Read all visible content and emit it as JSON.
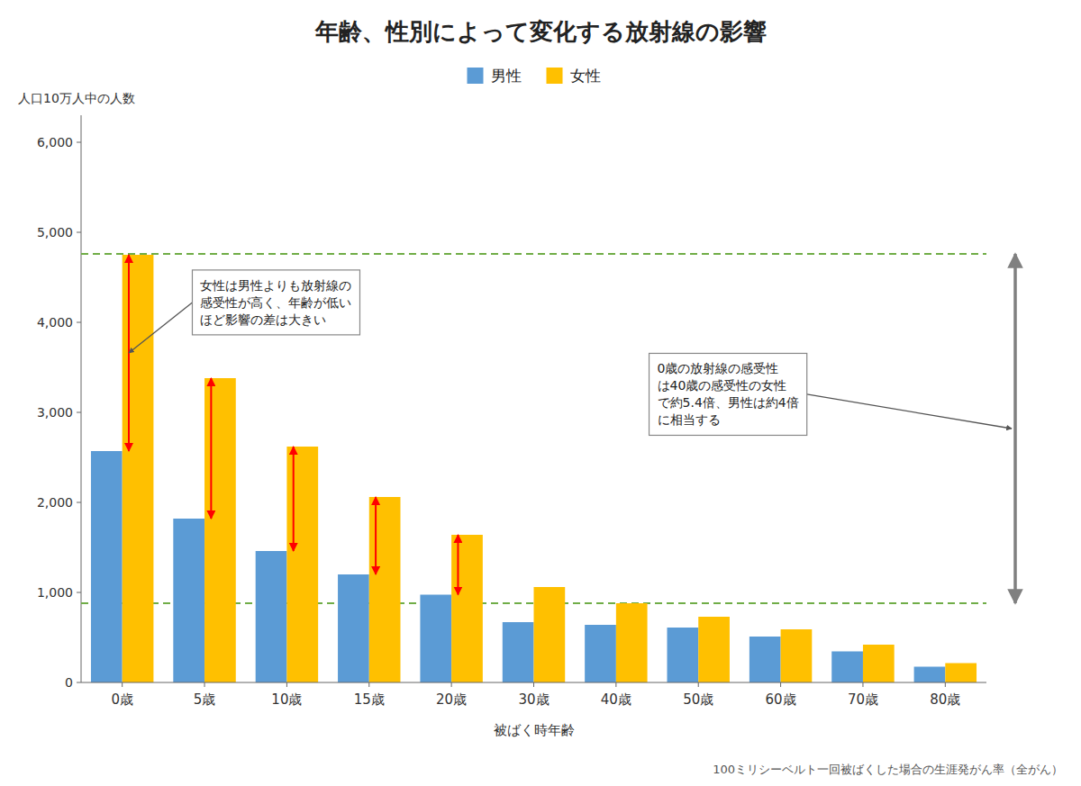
{
  "chart_data": {
    "type": "bar",
    "title": "年齢、性別によって変化する放射線の影響",
    "ylabel": "人口10万人中の人数",
    "xlabel": "被ばく時年齢",
    "footnote": "100ミリシーベルト一回被ばくした場合の生涯発がん率（全がん）",
    "categories": [
      "0歳",
      "5歳",
      "10歳",
      "15歳",
      "20歳",
      "30歳",
      "40歳",
      "50歳",
      "60歳",
      "70歳",
      "80歳"
    ],
    "series": [
      {
        "name": "男性",
        "color": "#5B9BD5",
        "values": [
          2570,
          1820,
          1460,
          1200,
          975,
          670,
          640,
          610,
          510,
          345,
          175
        ]
      },
      {
        "name": "女性",
        "color": "#FFC000",
        "values": [
          4750,
          3380,
          2620,
          2060,
          1640,
          1060,
          880,
          730,
          590,
          420,
          215
        ]
      }
    ],
    "ylim": [
      0,
      6300
    ],
    "yticks": [
      0,
      {
        "value": 1000,
        "label": "1,000"
      },
      {
        "value": 2000,
        "label": "2,000"
      },
      {
        "value": 3000,
        "label": "3,000"
      },
      {
        "value": 4000,
        "label": "4,000"
      },
      {
        "value": 5000,
        "label": "5,000"
      },
      {
        "value": 6000,
        "label": "6,000"
      }
    ],
    "grid": false,
    "legend": "top",
    "reference_lines": [
      {
        "value": 4760,
        "color": "#70AD47"
      },
      {
        "value": 880,
        "color": "#70AD47"
      }
    ],
    "gap_arrows": {
      "categories": [
        "0歳",
        "5歳",
        "10歳",
        "15歳",
        "20歳"
      ],
      "color": "red"
    },
    "annotations": [
      {
        "text": "女性は男性よりも放射線の\n感受性が高く、年齢が低い\nほど影響の差は大きい"
      },
      {
        "text": "0歳の放射線の感受性\nは40歳の感受性の女性\nで約5.4倍、男性は約4倍\nに相当する"
      }
    ]
  }
}
